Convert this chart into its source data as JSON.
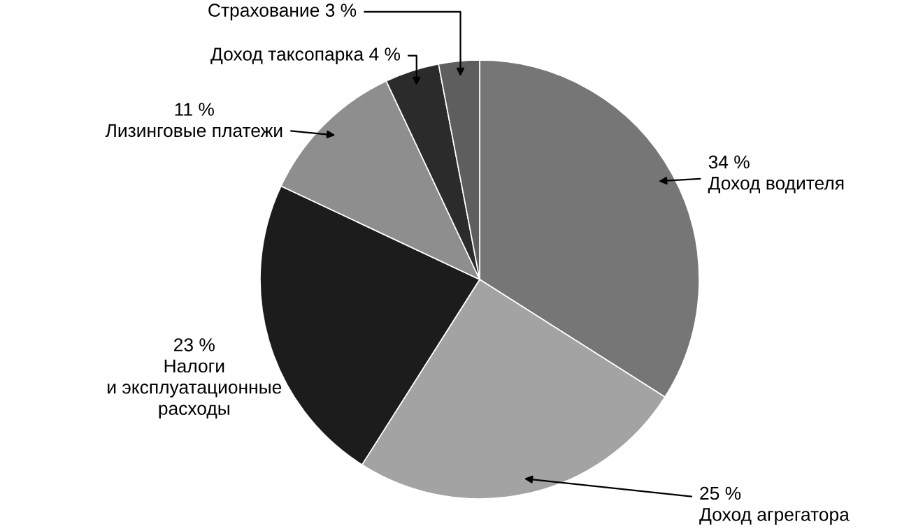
{
  "chart_data": {
    "type": "pie",
    "categories": [
      "Доход водителя",
      "Доход агрегатора",
      "Налоги\nи эксплуатационные\nрасходы",
      "Лизинговые платежи",
      "Доход таксопарка",
      "Страхование"
    ],
    "values": [
      34,
      25,
      23,
      11,
      4,
      3
    ],
    "value_labels": [
      "34 %",
      "25 %",
      "23 %",
      "11 %",
      "4 %",
      "3 %"
    ],
    "colors": [
      "#767676",
      "#a3a3a3",
      "#1c1c1c",
      "#8e8e8e",
      "#2b2b2b",
      "#5e5e5e"
    ],
    "legend": false
  }
}
